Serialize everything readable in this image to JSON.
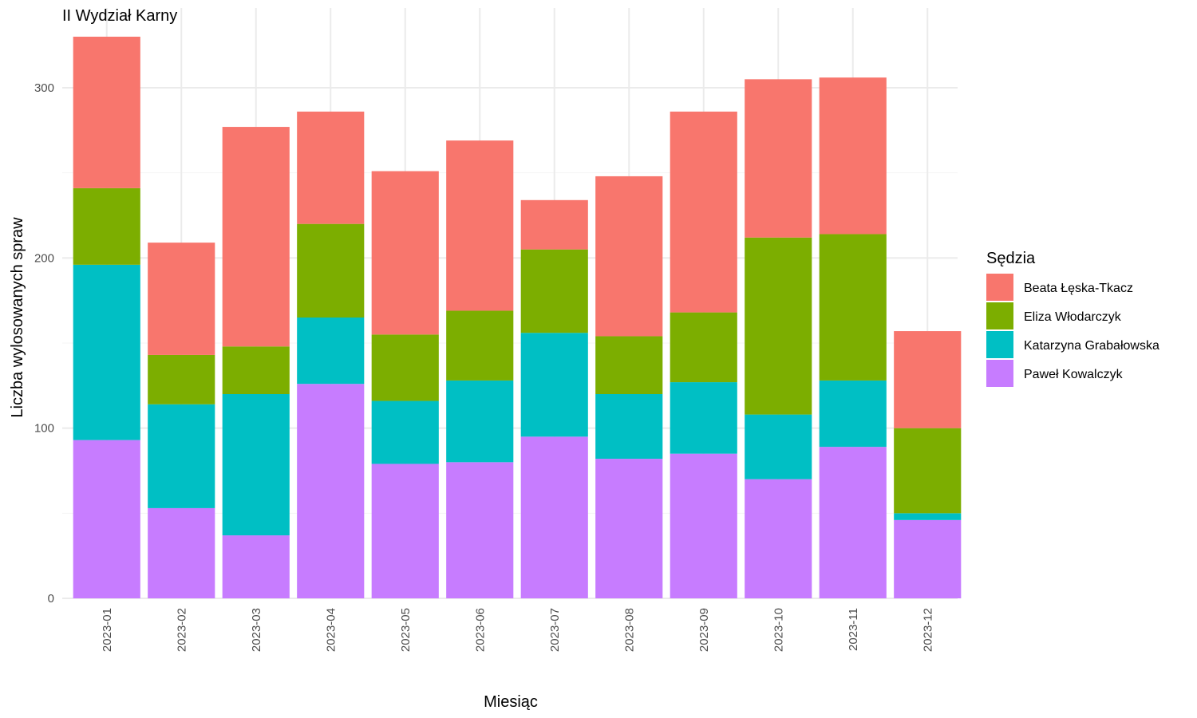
{
  "chart_data": {
    "type": "bar",
    "stacked": true,
    "title": "II Wydział Karny",
    "xlabel": "Miesiąc",
    "ylabel": "Liczba wylosowanych spraw",
    "ylim": [
      0,
      330
    ],
    "yticks": [
      0,
      100,
      200,
      300
    ],
    "grid": true,
    "legend_title": "Sędzia",
    "legend_position": "right",
    "categories": [
      "2023-01",
      "2023-02",
      "2023-03",
      "2023-04",
      "2023-05",
      "2023-06",
      "2023-07",
      "2023-08",
      "2023-09",
      "2023-10",
      "2023-11",
      "2023-12"
    ],
    "series": [
      {
        "name": "Paweł Kowalczyk",
        "color": "#C77CFF",
        "values": [
          93,
          53,
          37,
          126,
          79,
          80,
          95,
          82,
          85,
          70,
          89,
          46
        ]
      },
      {
        "name": "Katarzyna Grabałowska",
        "color": "#00BFC4",
        "values": [
          103,
          61,
          83,
          39,
          37,
          48,
          61,
          38,
          42,
          38,
          39,
          4
        ]
      },
      {
        "name": "Eliza Włodarczyk",
        "color": "#7CAE00",
        "values": [
          45,
          29,
          28,
          55,
          39,
          41,
          49,
          34,
          41,
          104,
          86,
          50
        ]
      },
      {
        "name": "Beata Łęska-Tkacz",
        "color": "#F8766D",
        "values": [
          89,
          66,
          129,
          66,
          96,
          100,
          29,
          94,
          118,
          93,
          92,
          57
        ]
      }
    ],
    "legend_order": [
      "Beata Łęska-Tkacz",
      "Eliza Włodarczyk",
      "Katarzyna Grabałowska",
      "Paweł Kowalczyk"
    ]
  }
}
